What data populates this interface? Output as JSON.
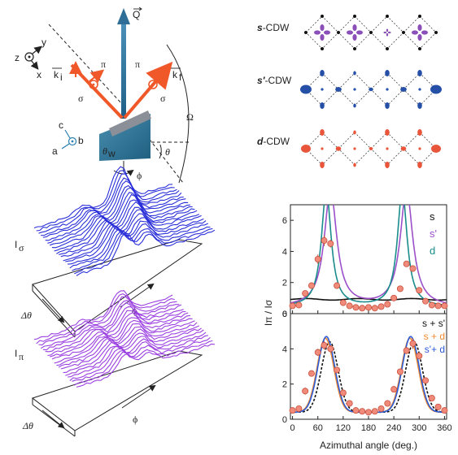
{
  "geometry_panel": {
    "axes": {
      "z": "z",
      "y": "y",
      "x": "x",
      "c": "c",
      "b": "b",
      "a": "a"
    },
    "vectors": {
      "Q": "Q",
      "ki": "k",
      "ki_sub": "i",
      "kf": "k",
      "kf_sub": "f"
    },
    "polarizations": {
      "sigma": "σ",
      "pi": "π"
    },
    "angles": {
      "Omega": "Ω",
      "theta": "θ",
      "theta_w": "θ",
      "theta_w_sub": "w",
      "phi": "ϕ"
    }
  },
  "cdw_panel": {
    "labels": [
      {
        "bold": "s",
        "rest": "-CDW"
      },
      {
        "bold": "s′",
        "rest": "-CDW"
      },
      {
        "bold": "d",
        "rest": "-CDW"
      }
    ],
    "colors": {
      "s": "#8b4fb8",
      "s_prime": "#2650a8",
      "d": "#e8553a"
    }
  },
  "waterfall_panel": {
    "top_label": "I",
    "top_label_sub": "σ",
    "bottom_label": "I",
    "bottom_label_sub": "π",
    "axis_dtheta": "Δθ",
    "axis_phi": "ϕ",
    "colors": {
      "sigma": "#2a2fd8",
      "pi": "#9a3fe0"
    }
  },
  "chart_data": [
    {
      "type": "line",
      "panel": "top",
      "ylabel": "Iπ / Iσ",
      "xlim": [
        -5,
        365
      ],
      "ylim": [
        0,
        7
      ],
      "yticks": [
        0,
        2,
        4,
        6
      ],
      "xticks": [
        0,
        60,
        120,
        180,
        240,
        300,
        360
      ],
      "series": [
        {
          "name": "s",
          "color": "#111111",
          "model": "flat",
          "value": 0.92
        },
        {
          "name": "s'",
          "color": "#9b4fc9",
          "model": "peak",
          "peaks": [
            90,
            270
          ],
          "width": 18
        },
        {
          "name": "d",
          "color": "#1a8c8c",
          "model": "peak",
          "peaks": [
            80,
            260
          ],
          "width": 14
        }
      ],
      "points": {
        "color": "#f08a7a",
        "x": [
          0,
          15,
          30,
          45,
          60,
          75,
          90,
          105,
          120,
          135,
          150,
          165,
          180,
          195,
          210,
          225,
          240,
          255,
          270,
          285,
          300,
          315,
          330,
          345,
          360
        ],
        "y": [
          0.5,
          0.55,
          1.3,
          1.8,
          3.5,
          4.7,
          4.5,
          1.8,
          0.7,
          0.5,
          0.4,
          0.35,
          0.4,
          0.35,
          0.45,
          0.6,
          1.0,
          1.6,
          3.2,
          2.9,
          1.5,
          0.8,
          0.55,
          0.5,
          0.5
        ],
        "err": [
          0,
          0,
          0,
          0.2,
          0.3,
          0.35,
          0.25,
          0.15,
          0,
          0,
          0,
          0,
          0,
          0,
          0,
          0,
          0,
          0,
          0,
          0,
          0,
          0,
          0,
          0,
          0
        ]
      }
    },
    {
      "type": "line",
      "panel": "bottom",
      "xlabel": "Azimuthal angle (deg.)",
      "xlim": [
        -5,
        365
      ],
      "ylim": [
        0,
        6
      ],
      "yticks": [
        0,
        2,
        4,
        6
      ],
      "xticks": [
        0,
        60,
        120,
        180,
        240,
        300,
        360
      ],
      "xticklabels": [
        "0",
        "60",
        "120",
        "180",
        "240",
        "300",
        "360"
      ],
      "series": [
        {
          "name": "s + s'",
          "color": "#111111",
          "dashed": true,
          "peaks": [
            88,
            288
          ],
          "width": 28,
          "amp": 4.4
        },
        {
          "name": "s + d",
          "color": "#f08a30",
          "dashed": false,
          "peaks": [
            78,
            278
          ],
          "width": 28,
          "amp": 4.6
        },
        {
          "name": "s'+ d",
          "color": "#2a5bd8",
          "dashed": false,
          "peaks": [
            80,
            280
          ],
          "width": 28,
          "amp": 4.7
        }
      ],
      "points": {
        "color": "#f08a7a",
        "x": [
          0,
          15,
          30,
          45,
          60,
          75,
          90,
          105,
          120,
          135,
          150,
          165,
          180,
          195,
          210,
          225,
          240,
          255,
          270,
          285,
          300,
          315,
          330,
          345,
          360
        ],
        "y": [
          0.5,
          0.6,
          1.6,
          2.6,
          3.8,
          4.2,
          4.0,
          2.8,
          1.5,
          0.9,
          0.5,
          0.45,
          0.4,
          0.45,
          0.6,
          0.9,
          1.7,
          2.7,
          3.9,
          4.3,
          3.6,
          2.2,
          1.2,
          0.7,
          0.5
        ],
        "err": [
          0,
          0,
          0.2,
          0,
          0.2,
          0.25,
          0.2,
          0.15,
          0,
          0,
          0,
          0,
          0,
          0,
          0,
          0,
          0,
          0,
          0.2,
          0.3,
          0.2,
          0.15,
          0,
          0,
          0
        ]
      }
    }
  ]
}
